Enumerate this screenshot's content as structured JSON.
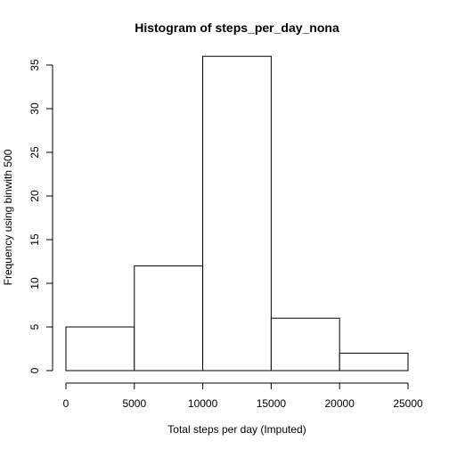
{
  "chart_data": {
    "type": "bar",
    "title": "Histogram of steps_per_day_nona",
    "xlabel": "Total steps per day (Imputed)",
    "ylabel": "Frequency using binwith 500",
    "bins": [
      {
        "from": 0,
        "to": 5000,
        "count": 5
      },
      {
        "from": 5000,
        "to": 10000,
        "count": 12
      },
      {
        "from": 10000,
        "to": 15000,
        "count": 36
      },
      {
        "from": 15000,
        "to": 20000,
        "count": 6
      },
      {
        "from": 20000,
        "to": 25000,
        "count": 2
      }
    ],
    "xlim": [
      0,
      25000
    ],
    "ylim": [
      0,
      35
    ],
    "x_ticks": [
      0,
      5000,
      10000,
      15000,
      20000,
      25000
    ],
    "y_ticks": [
      0,
      5,
      10,
      15,
      20,
      25,
      30,
      35
    ],
    "bar_fill": "#ffffff",
    "bar_stroke": "#000000",
    "grid": false,
    "legend": "none"
  }
}
